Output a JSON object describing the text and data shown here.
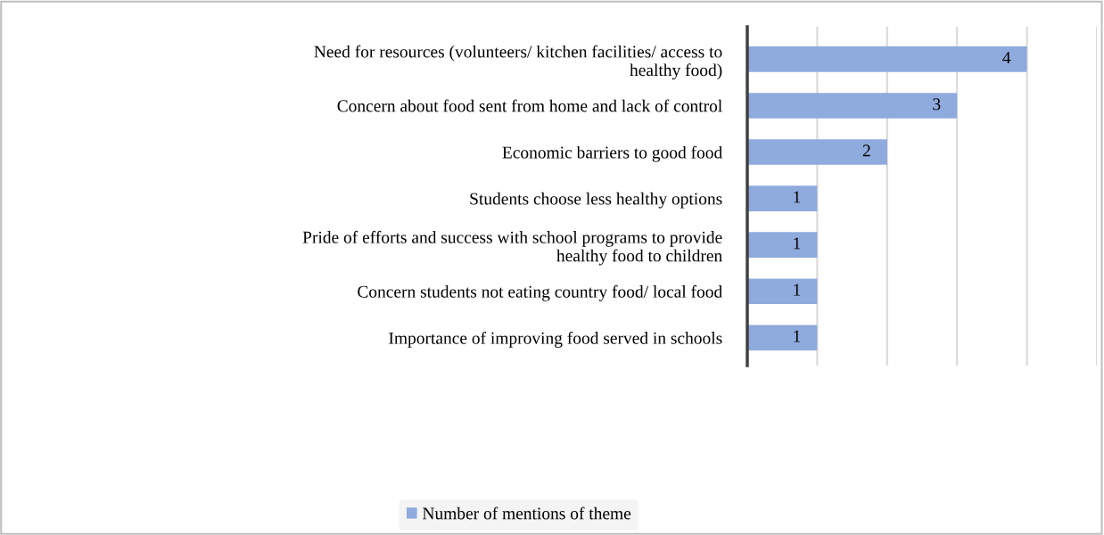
{
  "chart_data": {
    "type": "bar",
    "orientation": "horizontal",
    "categories": [
      "Need for resources (volunteers/ kitchen facilities/ access to\nhealthy food)",
      "Concern about food sent from home and lack of control",
      "Economic barriers to good food",
      "Students choose less healthy options",
      "Pride of efforts and success with school programs to provide\nhealthy food to children",
      "Concern students not eating country food/ local food",
      "Importance of improving food served in schools"
    ],
    "series": [
      {
        "name": "Number of mentions of theme",
        "color": "#8faadc",
        "values": [
          4,
          3,
          2,
          1,
          1,
          1,
          1
        ]
      }
    ],
    "xlim": [
      0,
      5
    ],
    "xticks": [
      {
        "value": 0,
        "label": null
      },
      {
        "value": 1,
        "label": null
      },
      {
        "value": 2,
        "label": null
      },
      {
        "value": 3,
        "label": null
      },
      {
        "value": 4,
        "label": null
      },
      {
        "value": 5,
        "label": null
      }
    ],
    "tick_labels": "y",
    "grid": "x",
    "data_labels": true,
    "legend": "bottom"
  }
}
